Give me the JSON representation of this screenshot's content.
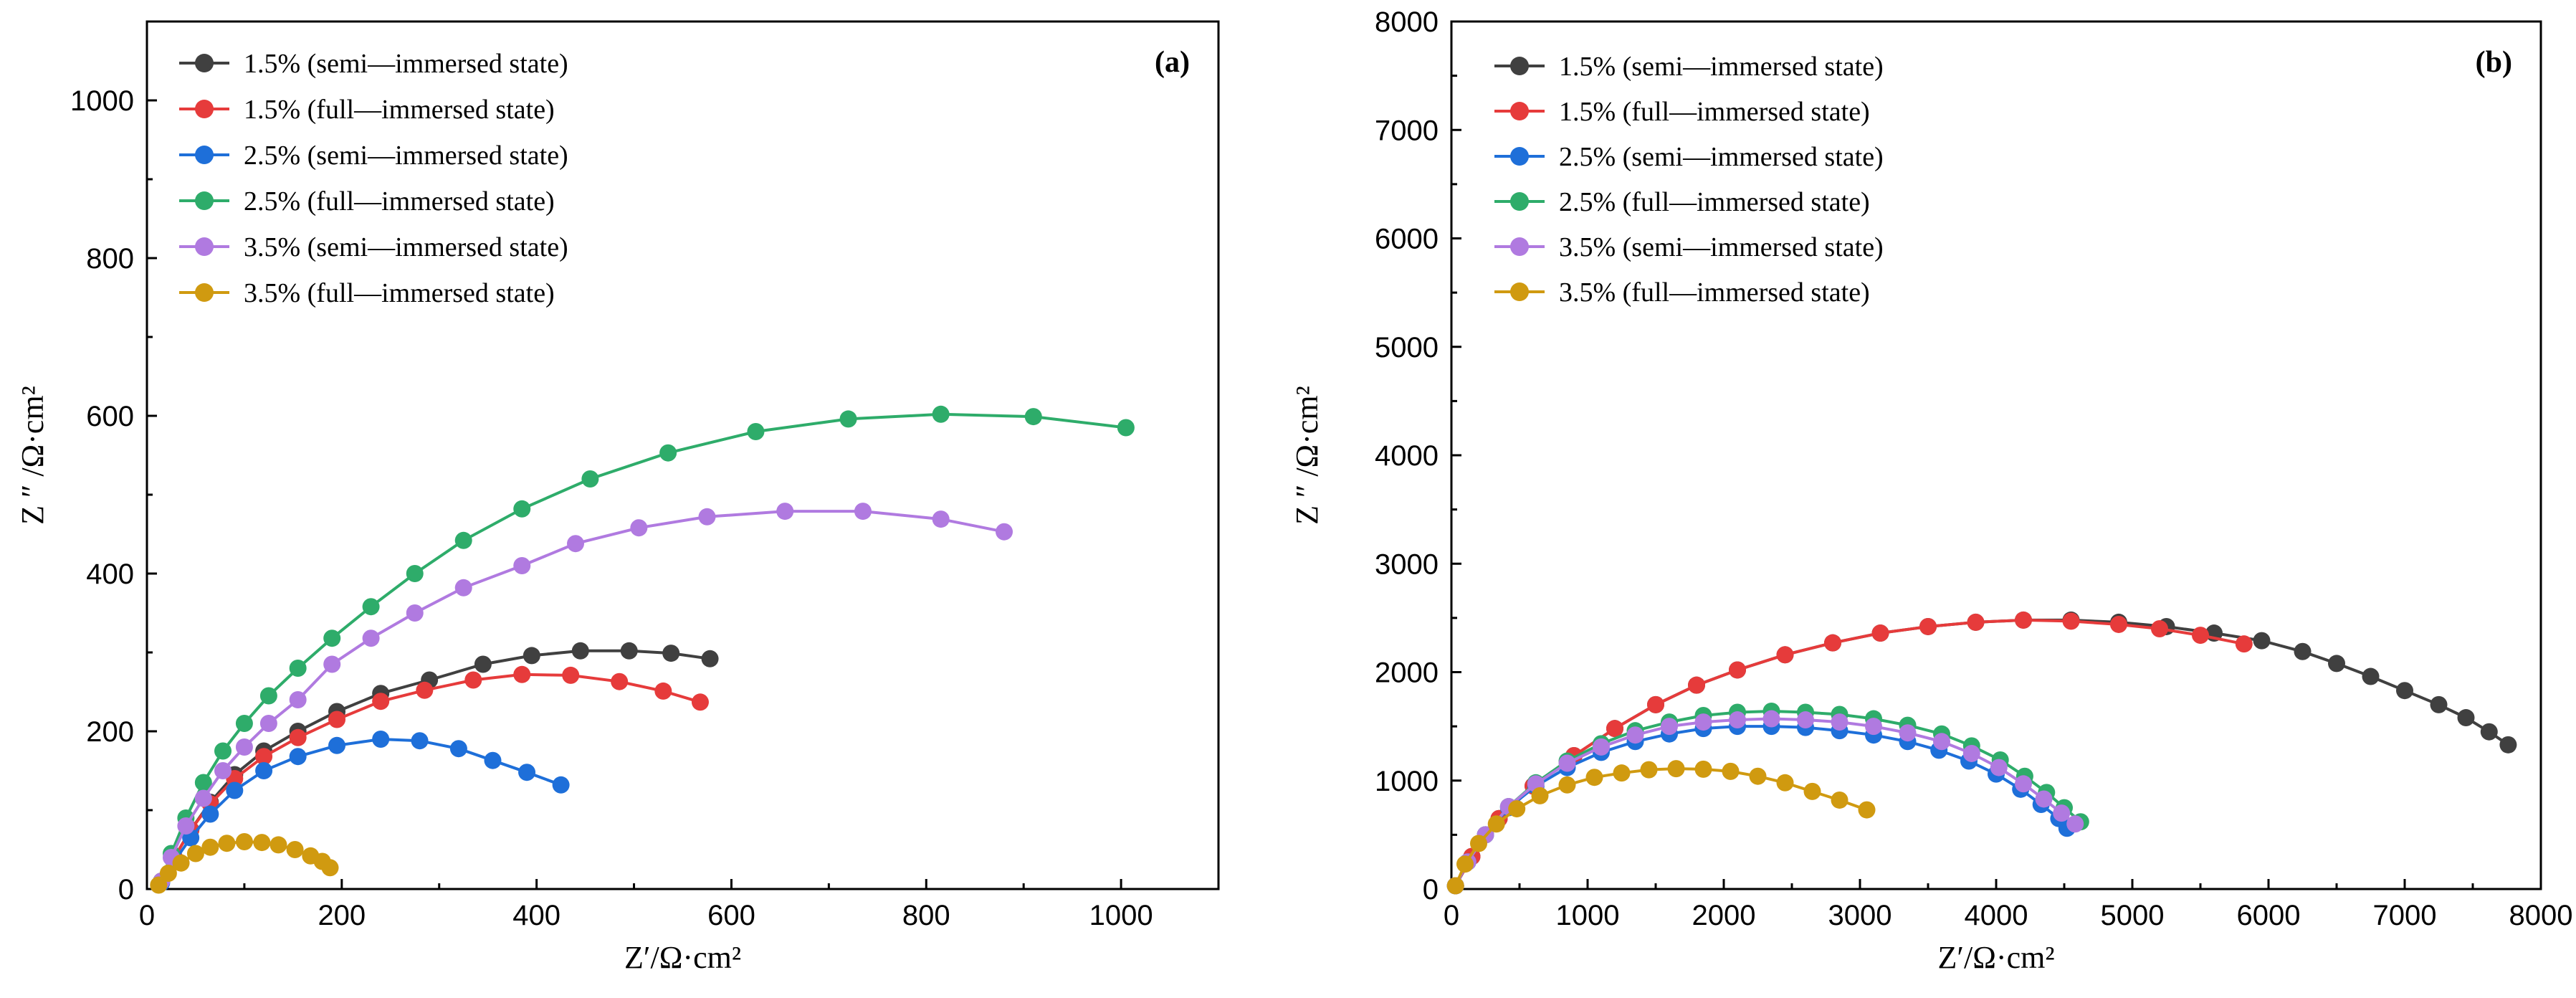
{
  "chart_data": [
    {
      "type": "line",
      "panel": "(a)",
      "xlabel": "Z′/Ω·cm²",
      "ylabel": "Z ″ /Ω·cm²",
      "xlim": [
        0,
        1100
      ],
      "ylim": [
        0,
        1100
      ],
      "xticks": [
        0,
        200,
        400,
        600,
        800,
        1000
      ],
      "yticks": [
        0,
        200,
        400,
        600,
        800,
        1000
      ],
      "legend_position": "top-left",
      "series": [
        {
          "name": "1.5% (semi—immersed state)",
          "color": "#404040",
          "x": [
            15,
            28,
            45,
            65,
            90,
            120,
            155,
            195,
            240,
            290,
            345,
            395,
            445,
            495,
            538,
            578
          ],
          "y": [
            10,
            40,
            75,
            110,
            145,
            175,
            200,
            225,
            248,
            265,
            285,
            296,
            302,
            302,
            299,
            292
          ]
        },
        {
          "name": "1.5% (full—immersed state)",
          "color": "#e63b3b",
          "x": [
            15,
            28,
            45,
            65,
            90,
            120,
            155,
            195,
            240,
            285,
            335,
            385,
            435,
            485,
            530,
            568
          ],
          "y": [
            10,
            40,
            75,
            108,
            140,
            168,
            192,
            215,
            238,
            252,
            265,
            272,
            271,
            263,
            251,
            237
          ]
        },
        {
          "name": "2.5% (semi—immersed state)",
          "color": "#1e6fd9",
          "x": [
            15,
            28,
            45,
            65,
            90,
            120,
            155,
            195,
            240,
            280,
            320,
            355,
            390,
            425
          ],
          "y": [
            8,
            35,
            65,
            95,
            125,
            150,
            168,
            182,
            190,
            188,
            178,
            163,
            148,
            132
          ]
        },
        {
          "name": "2.5% (full—immersed state)",
          "color": "#2eac6a",
          "x": [
            15,
            25,
            40,
            58,
            78,
            100,
            125,
            155,
            190,
            230,
            275,
            325,
            385,
            455,
            535,
            625,
            720,
            815,
            910,
            1005
          ],
          "y": [
            10,
            45,
            90,
            135,
            175,
            210,
            245,
            280,
            318,
            358,
            400,
            442,
            482,
            520,
            553,
            580,
            596,
            602,
            599,
            585
          ]
        },
        {
          "name": "3.5% (semi—immersed state)",
          "color": "#b07ae0",
          "x": [
            15,
            25,
            40,
            58,
            78,
            100,
            125,
            155,
            190,
            230,
            275,
            325,
            385,
            440,
            505,
            575,
            655,
            735,
            815,
            880
          ],
          "y": [
            10,
            40,
            80,
            115,
            150,
            180,
            210,
            240,
            285,
            318,
            350,
            382,
            410,
            438,
            458,
            472,
            479,
            479,
            469,
            453
          ]
        },
        {
          "name": "3.5% (full—immersed state)",
          "color": "#d09a10",
          "x": [
            12,
            22,
            35,
            50,
            65,
            82,
            100,
            118,
            135,
            152,
            168,
            180,
            188
          ],
          "y": [
            5,
            20,
            33,
            45,
            53,
            58,
            60,
            59,
            56,
            50,
            42,
            35,
            27
          ]
        }
      ]
    },
    {
      "type": "line",
      "panel": "(b)",
      "xlabel": "Z′/Ω·cm²",
      "ylabel": "Z ″ /Ω·cm²",
      "xlim": [
        0,
        8000
      ],
      "ylim": [
        0,
        8000
      ],
      "xticks": [
        0,
        1000,
        2000,
        3000,
        4000,
        5000,
        6000,
        7000,
        8000
      ],
      "yticks": [
        0,
        1000,
        2000,
        3000,
        4000,
        5000,
        6000,
        7000,
        8000
      ],
      "legend_position": "top-left",
      "series": [
        {
          "name": "1.5% (semi—immersed state)",
          "color": "#404040",
          "x": [
            30,
            150,
            350,
            600,
            900,
            1200,
            1500,
            1800,
            2100,
            2450,
            2800,
            3150,
            3500,
            3850,
            4200,
            4550,
            4900,
            5250,
            5600,
            5950,
            6250,
            6500,
            6750,
            7000,
            7250,
            7450,
            7620,
            7760
          ],
          "y": [
            30,
            300,
            650,
            950,
            1230,
            1480,
            1700,
            1880,
            2020,
            2160,
            2270,
            2360,
            2420,
            2460,
            2480,
            2480,
            2460,
            2420,
            2360,
            2290,
            2190,
            2080,
            1960,
            1830,
            1700,
            1580,
            1450,
            1330
          ]
        },
        {
          "name": "1.5% (full—immersed state)",
          "color": "#e63b3b",
          "x": [
            30,
            150,
            350,
            600,
            900,
            1200,
            1500,
            1800,
            2100,
            2450,
            2800,
            3150,
            3500,
            3850,
            4200,
            4550,
            4900,
            5200,
            5500,
            5820
          ],
          "y": [
            30,
            300,
            650,
            950,
            1230,
            1480,
            1700,
            1880,
            2020,
            2160,
            2270,
            2360,
            2420,
            2460,
            2480,
            2470,
            2440,
            2400,
            2340,
            2260
          ]
        },
        {
          "name": "2.5% (semi—immersed state)",
          "color": "#1e6fd9",
          "x": [
            30,
            120,
            250,
            420,
            620,
            850,
            1100,
            1350,
            1600,
            1850,
            2100,
            2350,
            2600,
            2850,
            3100,
            3350,
            3580,
            3800,
            4000,
            4180,
            4330,
            4460,
            4520
          ],
          "y": [
            30,
            250,
            500,
            750,
            950,
            1120,
            1260,
            1360,
            1430,
            1480,
            1500,
            1500,
            1490,
            1460,
            1420,
            1360,
            1280,
            1180,
            1060,
            920,
            780,
            650,
            560
          ]
        },
        {
          "name": "2.5% (full—immersed state)",
          "color": "#2eac6a",
          "x": [
            30,
            120,
            250,
            420,
            620,
            850,
            1100,
            1350,
            1600,
            1850,
            2100,
            2350,
            2600,
            2850,
            3100,
            3350,
            3600,
            3820,
            4030,
            4210,
            4370,
            4500,
            4620
          ],
          "y": [
            30,
            250,
            500,
            760,
            980,
            1180,
            1340,
            1460,
            1540,
            1600,
            1630,
            1640,
            1630,
            1610,
            1570,
            1510,
            1430,
            1320,
            1190,
            1040,
            890,
            750,
            620
          ]
        },
        {
          "name": "3.5% (semi—immersed state)",
          "color": "#b07ae0",
          "x": [
            30,
            120,
            250,
            420,
            620,
            850,
            1100,
            1350,
            1600,
            1850,
            2100,
            2350,
            2600,
            2850,
            3100,
            3350,
            3600,
            3820,
            4020,
            4200,
            4350,
            4480,
            4580
          ],
          "y": [
            30,
            250,
            500,
            760,
            970,
            1160,
            1310,
            1420,
            1500,
            1540,
            1560,
            1570,
            1560,
            1540,
            1500,
            1440,
            1360,
            1250,
            1120,
            970,
            830,
            700,
            600
          ]
        },
        {
          "name": "3.5% (full—immersed state)",
          "color": "#d09a10",
          "x": [
            30,
            100,
            200,
            330,
            480,
            650,
            850,
            1050,
            1250,
            1450,
            1650,
            1850,
            2050,
            2250,
            2450,
            2650,
            2850,
            3050
          ],
          "y": [
            30,
            230,
            420,
            600,
            740,
            860,
            960,
            1030,
            1070,
            1100,
            1110,
            1105,
            1085,
            1040,
            980,
            900,
            820,
            730
          ]
        }
      ]
    }
  ]
}
